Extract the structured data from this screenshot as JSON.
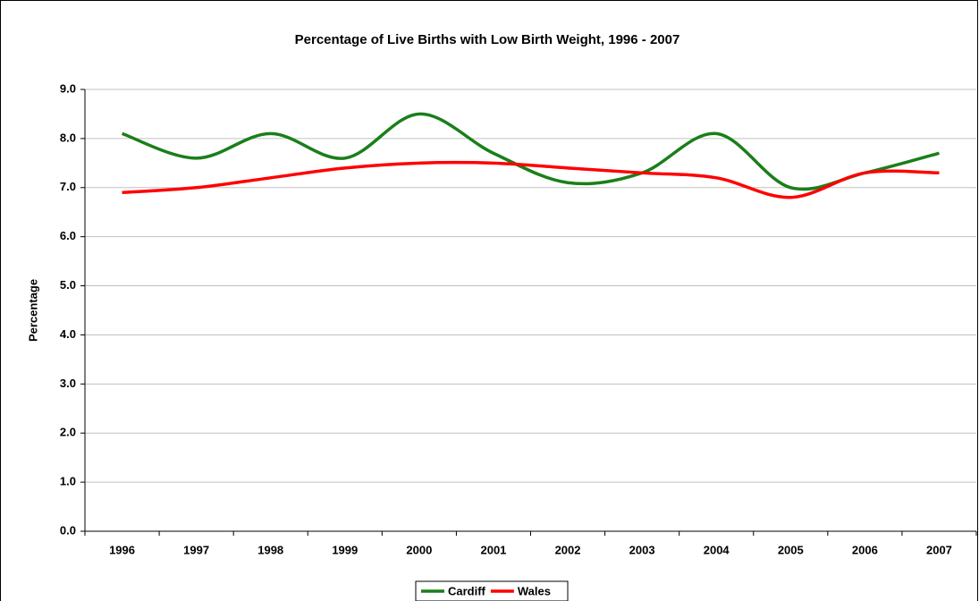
{
  "chart_data": {
    "type": "line",
    "title": "Percentage of Live Births with Low Birth Weight, 1996 - 2007",
    "y_label": "Percentage",
    "categories": [
      "1996",
      "1997",
      "1998",
      "1999",
      "2000",
      "2001",
      "2002",
      "2003",
      "2004",
      "2005",
      "2006",
      "2007"
    ],
    "series": [
      {
        "name": "Cardiff",
        "color": "#1a7f1a",
        "values": [
          8.1,
          7.6,
          8.1,
          7.6,
          8.5,
          7.7,
          7.1,
          7.3,
          8.1,
          7.0,
          7.3,
          7.7
        ]
      },
      {
        "name": "Wales",
        "color": "#ff0000",
        "values": [
          6.9,
          7.0,
          7.2,
          7.4,
          7.5,
          7.5,
          7.4,
          7.3,
          7.2,
          6.8,
          7.3,
          7.3
        ]
      }
    ],
    "ylim": [
      0,
      9
    ],
    "yticks": [
      {
        "value": 0,
        "label": "0.0"
      },
      {
        "value": 1,
        "label": "1.0"
      },
      {
        "value": 2,
        "label": "2.0"
      },
      {
        "value": 3,
        "label": "3.0"
      },
      {
        "value": 4,
        "label": "4.0"
      },
      {
        "value": 5,
        "label": "5.0"
      },
      {
        "value": 6,
        "label": "6.0"
      },
      {
        "value": 7,
        "label": "7.0"
      },
      {
        "value": 8,
        "label": "8.0"
      },
      {
        "value": 9,
        "label": "9.0"
      }
    ],
    "grid": true,
    "smooth": true,
    "legend": "bottom"
  }
}
